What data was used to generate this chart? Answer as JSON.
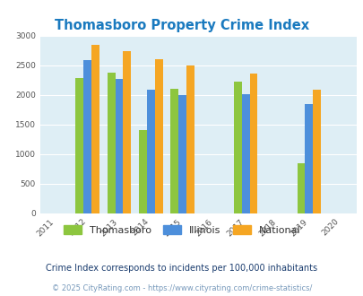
{
  "title": "Thomasboro Property Crime Index",
  "all_years": [
    2011,
    2012,
    2013,
    2014,
    2015,
    2016,
    2017,
    2018,
    2019,
    2020
  ],
  "data_years": [
    2012,
    2013,
    2014,
    2015,
    2017,
    2019
  ],
  "thomasboro": [
    2280,
    2380,
    1400,
    2100,
    2220,
    840
  ],
  "illinois": [
    2580,
    2270,
    2090,
    1990,
    2010,
    1850
  ],
  "national": [
    2850,
    2740,
    2600,
    2500,
    2360,
    2090
  ],
  "colors": {
    "thomasboro": "#8dc63f",
    "illinois": "#4d8fdb",
    "national": "#f5a623"
  },
  "ylim": [
    0,
    3000
  ],
  "yticks": [
    0,
    500,
    1000,
    1500,
    2000,
    2500,
    3000
  ],
  "plot_bg": "#deeef5",
  "title_color": "#1a7abf",
  "legend_text_color": "#333333",
  "subtitle": "Crime Index corresponds to incidents per 100,000 inhabitants",
  "footer": "© 2025 CityRating.com - https://www.cityrating.com/crime-statistics/",
  "subtitle_color": "#1a3c6e",
  "footer_color": "#7799bb",
  "bar_width": 0.25
}
